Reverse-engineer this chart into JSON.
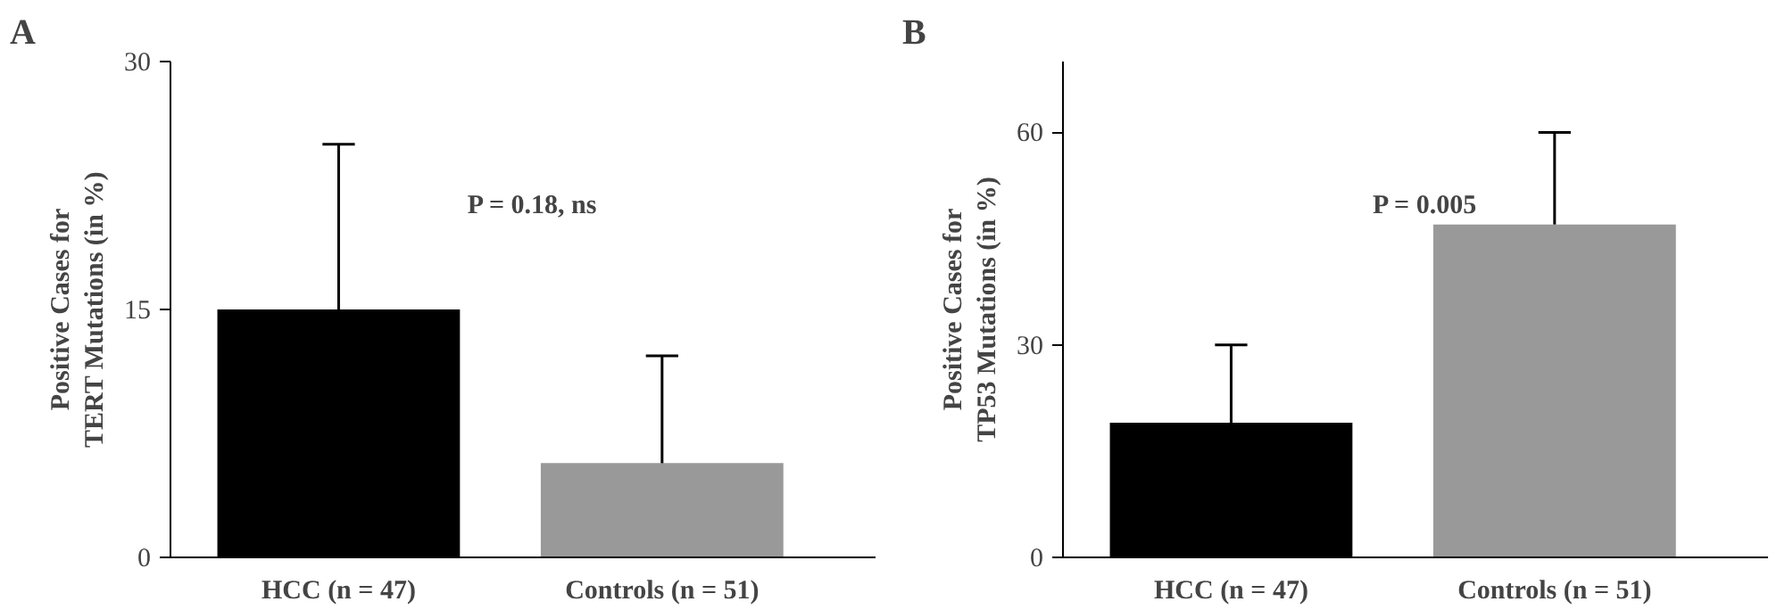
{
  "chart_data": [
    {
      "type": "bar",
      "title": "A",
      "ylabel": "Positive Cases for\nTERT Mutations (in %)",
      "categories": [
        "HCC (n = 47)",
        "Controls (n = 51)"
      ],
      "values": [
        15,
        5.7
      ],
      "colors": [
        "#000000",
        "#999999"
      ],
      "errors": [
        [
          15,
          25
        ],
        [
          5.7,
          12.2
        ]
      ],
      "ylim": [
        0,
        30
      ],
      "yticks": [
        0,
        15,
        30
      ],
      "grid": false,
      "annotations": [
        "P = 0.18, ns"
      ]
    },
    {
      "type": "bar",
      "title": "B",
      "ylabel": "Positive Cases for\nTP53 Mutations (in %)",
      "categories": [
        "HCC (n = 47)",
        "Controls (n = 51)"
      ],
      "values": [
        19,
        47
      ],
      "colors": [
        "#000000",
        "#999999"
      ],
      "errors": [
        [
          19,
          30
        ],
        [
          47,
          60
        ]
      ],
      "ylim": [
        0,
        70
      ],
      "yticks": [
        0,
        30,
        60
      ],
      "grid": false,
      "annotations": [
        "P = 0.005"
      ]
    }
  ]
}
